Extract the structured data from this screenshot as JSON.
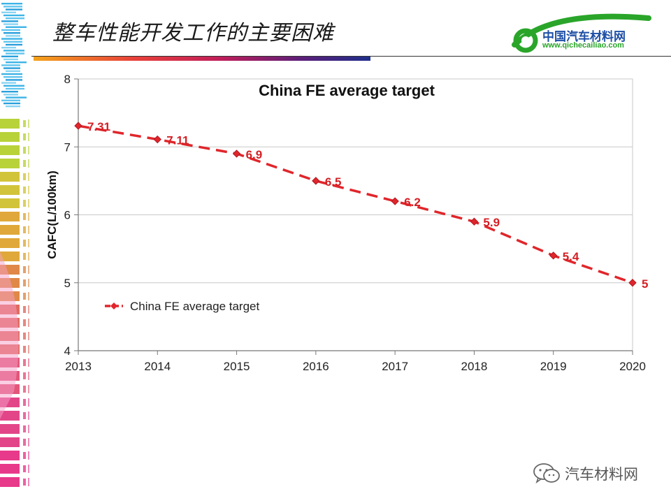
{
  "slide": {
    "title": "整车性能开发工作的主要困难"
  },
  "logo": {
    "name": "中国汽车材料网",
    "url": "www.qichecailiao.com"
  },
  "watermark": {
    "text": "汽车材料网"
  },
  "colors": {
    "series": "#e0262b",
    "series_marker_edge": "#b01822",
    "label": "#d42025",
    "grid": "#c8c8c8",
    "accent_green": "#2aa52a",
    "accent_blue": "#1d4fa5"
  },
  "chart_data": {
    "type": "line",
    "title": "China FE average target",
    "xlabel": "",
    "ylabel": "CAFC(L/100km)",
    "x": [
      2013,
      2014,
      2015,
      2016,
      2017,
      2018,
      2019,
      2020
    ],
    "xticks": [
      "2013",
      "2014",
      "2015",
      "2016",
      "2017",
      "2018",
      "2019",
      "2020"
    ],
    "ylim": [
      4,
      8
    ],
    "yticks": [
      "4",
      "5",
      "6",
      "7",
      "8"
    ],
    "grid": true,
    "legend_position": "lower-left",
    "series": [
      {
        "name": "China FE average target",
        "line_style": "dashed",
        "marker": "diamond",
        "values": [
          7.31,
          7.11,
          6.9,
          6.5,
          6.2,
          5.9,
          5.4,
          5
        ],
        "data_labels": [
          "7.31",
          "7.11",
          "6.9",
          "6.5",
          "6.2",
          "5.9",
          "5.4",
          "5"
        ]
      }
    ]
  }
}
